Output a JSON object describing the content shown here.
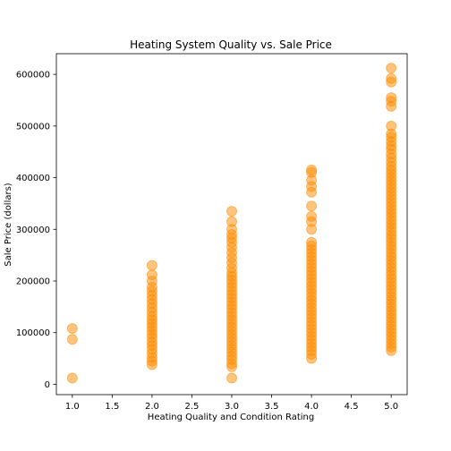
{
  "chart_data": {
    "type": "scatter",
    "title": "Heating System Quality vs. Sale Price",
    "xlabel": "Heating Quality and Condition Rating",
    "ylabel": "Sale Price (dollars)",
    "xlim": [
      0.8,
      5.2
    ],
    "ylim": [
      -20000,
      640000
    ],
    "xticks": [
      1.0,
      1.5,
      2.0,
      2.5,
      3.0,
      3.5,
      4.0,
      4.5,
      5.0
    ],
    "xtick_labels": [
      "1.0",
      "1.5",
      "2.0",
      "2.5",
      "3.0",
      "3.5",
      "4.0",
      "4.5",
      "5.0"
    ],
    "yticks": [
      0,
      100000,
      200000,
      300000,
      400000,
      500000,
      600000
    ],
    "ytick_labels": [
      "0",
      "100000",
      "200000",
      "300000",
      "400000",
      "500000",
      "600000"
    ],
    "grid": false,
    "marker_color": "#ff8c00",
    "marker_alpha": 0.5,
    "points": [
      {
        "x": 1,
        "y": 12000
      },
      {
        "x": 1,
        "y": 87000
      },
      {
        "x": 1,
        "y": 108000
      },
      {
        "x": 2,
        "y": 38000
      },
      {
        "x": 2,
        "y": 45000
      },
      {
        "x": 2,
        "y": 52000
      },
      {
        "x": 2,
        "y": 60000
      },
      {
        "x": 2,
        "y": 68000
      },
      {
        "x": 2,
        "y": 75000
      },
      {
        "x": 2,
        "y": 82000
      },
      {
        "x": 2,
        "y": 90000
      },
      {
        "x": 2,
        "y": 97000
      },
      {
        "x": 2,
        "y": 104000
      },
      {
        "x": 2,
        "y": 111000
      },
      {
        "x": 2,
        "y": 118000
      },
      {
        "x": 2,
        "y": 125000
      },
      {
        "x": 2,
        "y": 132000
      },
      {
        "x": 2,
        "y": 140000
      },
      {
        "x": 2,
        "y": 148000
      },
      {
        "x": 2,
        "y": 156000
      },
      {
        "x": 2,
        "y": 164000
      },
      {
        "x": 2,
        "y": 172000
      },
      {
        "x": 2,
        "y": 180000
      },
      {
        "x": 2,
        "y": 188000
      },
      {
        "x": 2,
        "y": 200000
      },
      {
        "x": 2,
        "y": 212000
      },
      {
        "x": 2,
        "y": 230000
      },
      {
        "x": 3,
        "y": 12000
      },
      {
        "x": 3,
        "y": 34000
      },
      {
        "x": 3,
        "y": 40000
      },
      {
        "x": 3,
        "y": 48000
      },
      {
        "x": 3,
        "y": 55000
      },
      {
        "x": 3,
        "y": 62000
      },
      {
        "x": 3,
        "y": 69000
      },
      {
        "x": 3,
        "y": 76000
      },
      {
        "x": 3,
        "y": 83000
      },
      {
        "x": 3,
        "y": 90000
      },
      {
        "x": 3,
        "y": 97000
      },
      {
        "x": 3,
        "y": 104000
      },
      {
        "x": 3,
        "y": 111000
      },
      {
        "x": 3,
        "y": 118000
      },
      {
        "x": 3,
        "y": 125000
      },
      {
        "x": 3,
        "y": 132000
      },
      {
        "x": 3,
        "y": 139000
      },
      {
        "x": 3,
        "y": 146000
      },
      {
        "x": 3,
        "y": 153000
      },
      {
        "x": 3,
        "y": 160000
      },
      {
        "x": 3,
        "y": 167000
      },
      {
        "x": 3,
        "y": 174000
      },
      {
        "x": 3,
        "y": 181000
      },
      {
        "x": 3,
        "y": 188000
      },
      {
        "x": 3,
        "y": 195000
      },
      {
        "x": 3,
        "y": 202000
      },
      {
        "x": 3,
        "y": 209000
      },
      {
        "x": 3,
        "y": 216000
      },
      {
        "x": 3,
        "y": 225000
      },
      {
        "x": 3,
        "y": 235000
      },
      {
        "x": 3,
        "y": 245000
      },
      {
        "x": 3,
        "y": 255000
      },
      {
        "x": 3,
        "y": 265000
      },
      {
        "x": 3,
        "y": 275000
      },
      {
        "x": 3,
        "y": 283000
      },
      {
        "x": 3,
        "y": 290000
      },
      {
        "x": 3,
        "y": 300000
      },
      {
        "x": 3,
        "y": 315000
      },
      {
        "x": 3,
        "y": 335000
      },
      {
        "x": 4,
        "y": 50000
      },
      {
        "x": 4,
        "y": 58000
      },
      {
        "x": 4,
        "y": 65000
      },
      {
        "x": 4,
        "y": 72000
      },
      {
        "x": 4,
        "y": 79000
      },
      {
        "x": 4,
        "y": 86000
      },
      {
        "x": 4,
        "y": 93000
      },
      {
        "x": 4,
        "y": 100000
      },
      {
        "x": 4,
        "y": 107000
      },
      {
        "x": 4,
        "y": 114000
      },
      {
        "x": 4,
        "y": 121000
      },
      {
        "x": 4,
        "y": 128000
      },
      {
        "x": 4,
        "y": 135000
      },
      {
        "x": 4,
        "y": 142000
      },
      {
        "x": 4,
        "y": 149000
      },
      {
        "x": 4,
        "y": 156000
      },
      {
        "x": 4,
        "y": 163000
      },
      {
        "x": 4,
        "y": 170000
      },
      {
        "x": 4,
        "y": 177000
      },
      {
        "x": 4,
        "y": 184000
      },
      {
        "x": 4,
        "y": 191000
      },
      {
        "x": 4,
        "y": 198000
      },
      {
        "x": 4,
        "y": 205000
      },
      {
        "x": 4,
        "y": 212000
      },
      {
        "x": 4,
        "y": 219000
      },
      {
        "x": 4,
        "y": 226000
      },
      {
        "x": 4,
        "y": 233000
      },
      {
        "x": 4,
        "y": 240000
      },
      {
        "x": 4,
        "y": 247000
      },
      {
        "x": 4,
        "y": 254000
      },
      {
        "x": 4,
        "y": 261000
      },
      {
        "x": 4,
        "y": 268000
      },
      {
        "x": 4,
        "y": 275000
      },
      {
        "x": 4,
        "y": 300000
      },
      {
        "x": 4,
        "y": 315000
      },
      {
        "x": 4,
        "y": 325000
      },
      {
        "x": 4,
        "y": 345000
      },
      {
        "x": 4,
        "y": 372000
      },
      {
        "x": 4,
        "y": 383000
      },
      {
        "x": 4,
        "y": 395000
      },
      {
        "x": 4,
        "y": 410000
      },
      {
        "x": 4,
        "y": 415000
      },
      {
        "x": 5,
        "y": 65000
      },
      {
        "x": 5,
        "y": 72000
      },
      {
        "x": 5,
        "y": 79000
      },
      {
        "x": 5,
        "y": 86000
      },
      {
        "x": 5,
        "y": 93000
      },
      {
        "x": 5,
        "y": 100000
      },
      {
        "x": 5,
        "y": 107000
      },
      {
        "x": 5,
        "y": 114000
      },
      {
        "x": 5,
        "y": 121000
      },
      {
        "x": 5,
        "y": 128000
      },
      {
        "x": 5,
        "y": 135000
      },
      {
        "x": 5,
        "y": 142000
      },
      {
        "x": 5,
        "y": 149000
      },
      {
        "x": 5,
        "y": 156000
      },
      {
        "x": 5,
        "y": 163000
      },
      {
        "x": 5,
        "y": 170000
      },
      {
        "x": 5,
        "y": 177000
      },
      {
        "x": 5,
        "y": 184000
      },
      {
        "x": 5,
        "y": 191000
      },
      {
        "x": 5,
        "y": 198000
      },
      {
        "x": 5,
        "y": 205000
      },
      {
        "x": 5,
        "y": 212000
      },
      {
        "x": 5,
        "y": 219000
      },
      {
        "x": 5,
        "y": 226000
      },
      {
        "x": 5,
        "y": 233000
      },
      {
        "x": 5,
        "y": 240000
      },
      {
        "x": 5,
        "y": 247000
      },
      {
        "x": 5,
        "y": 254000
      },
      {
        "x": 5,
        "y": 261000
      },
      {
        "x": 5,
        "y": 268000
      },
      {
        "x": 5,
        "y": 275000
      },
      {
        "x": 5,
        "y": 282000
      },
      {
        "x": 5,
        "y": 289000
      },
      {
        "x": 5,
        "y": 296000
      },
      {
        "x": 5,
        "y": 303000
      },
      {
        "x": 5,
        "y": 310000
      },
      {
        "x": 5,
        "y": 317000
      },
      {
        "x": 5,
        "y": 324000
      },
      {
        "x": 5,
        "y": 331000
      },
      {
        "x": 5,
        "y": 338000
      },
      {
        "x": 5,
        "y": 345000
      },
      {
        "x": 5,
        "y": 352000
      },
      {
        "x": 5,
        "y": 359000
      },
      {
        "x": 5,
        "y": 366000
      },
      {
        "x": 5,
        "y": 373000
      },
      {
        "x": 5,
        "y": 380000
      },
      {
        "x": 5,
        "y": 387000
      },
      {
        "x": 5,
        "y": 394000
      },
      {
        "x": 5,
        "y": 401000
      },
      {
        "x": 5,
        "y": 408000
      },
      {
        "x": 5,
        "y": 415000
      },
      {
        "x": 5,
        "y": 422000
      },
      {
        "x": 5,
        "y": 430000
      },
      {
        "x": 5,
        "y": 438000
      },
      {
        "x": 5,
        "y": 446000
      },
      {
        "x": 5,
        "y": 455000
      },
      {
        "x": 5,
        "y": 462000
      },
      {
        "x": 5,
        "y": 470000
      },
      {
        "x": 5,
        "y": 478000
      },
      {
        "x": 5,
        "y": 485000
      },
      {
        "x": 5,
        "y": 500000
      },
      {
        "x": 5,
        "y": 538000
      },
      {
        "x": 5,
        "y": 548000
      },
      {
        "x": 5,
        "y": 555000
      },
      {
        "x": 5,
        "y": 585000
      },
      {
        "x": 5,
        "y": 592000
      },
      {
        "x": 5,
        "y": 612000
      }
    ]
  }
}
